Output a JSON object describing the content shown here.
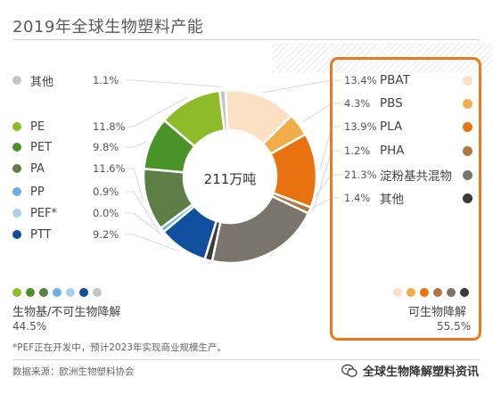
{
  "title": "2019年全球生物塑料产能",
  "chart_data": {
    "type": "pie",
    "title": "2019年全球生物塑料产能",
    "center_label": "211万吨",
    "slices": [
      {
        "name": "PBAT",
        "value": 13.4,
        "color": "#fbe0c3",
        "group": "bio"
      },
      {
        "name": "PBS",
        "value": 4.3,
        "color": "#f0ad49",
        "group": "bio"
      },
      {
        "name": "PLA",
        "value": 13.9,
        "color": "#e8720f",
        "group": "bio"
      },
      {
        "name": "PHA",
        "value": 1.2,
        "color": "#b07745",
        "group": "bio"
      },
      {
        "name": "淀粉基共混物",
        "value": 21.3,
        "color": "#7a746d",
        "group": "bio"
      },
      {
        "name": "其他",
        "value": 1.4,
        "color": "#3a3a3a",
        "group": "bio"
      },
      {
        "name": "PTT",
        "value": 9.2,
        "color": "#104e9e",
        "group": "bio-based"
      },
      {
        "name": "PEF*",
        "value": 0.0,
        "color": "#a6d0ee",
        "group": "bio-based"
      },
      {
        "name": "PP",
        "value": 0.9,
        "color": "#6fb0e2",
        "group": "bio-based"
      },
      {
        "name": "PA",
        "value": 11.6,
        "color": "#5d7f46",
        "group": "bio-based"
      },
      {
        "name": "PET",
        "value": 9.8,
        "color": "#4a9329",
        "group": "bio-based"
      },
      {
        "name": "PE",
        "value": 11.8,
        "color": "#8dbb2a",
        "group": "bio-based"
      },
      {
        "name": "其他",
        "value": 1.1,
        "color": "#c4c4c4",
        "group": "bio-based"
      }
    ]
  },
  "left_legend": [
    {
      "name": "其他",
      "pct": "1.1%",
      "color": "#c4c4c4"
    },
    {
      "name": "PE",
      "pct": "11.8%",
      "color": "#8dbb2a"
    },
    {
      "name": "PET",
      "pct": "9.8%",
      "color": "#4a9329"
    },
    {
      "name": "PA",
      "pct": "11.6%",
      "color": "#5d7f46"
    },
    {
      "name": "PP",
      "pct": "0.9%",
      "color": "#6fb0e2"
    },
    {
      "name": "PEF*",
      "pct": "0.0%",
      "color": "#a6d0ee"
    },
    {
      "name": "PTT",
      "pct": "9.2%",
      "color": "#104e9e"
    }
  ],
  "right_legend": [
    {
      "name": "PBAT",
      "pct": "13.4%",
      "color": "#fbe0c3"
    },
    {
      "name": "PBS",
      "pct": "4.3%",
      "color": "#f0ad49"
    },
    {
      "name": "PLA",
      "pct": "13.9%",
      "color": "#e8720f"
    },
    {
      "name": "PHA",
      "pct": "1.2%",
      "color": "#b07745"
    },
    {
      "name": "淀粉基共混物",
      "pct": "21.3%",
      "color": "#7a746d"
    },
    {
      "name": "其他",
      "pct": "1.4%",
      "color": "#3a3a3a"
    }
  ],
  "groups": {
    "left_label": "生物基/不可生物降解",
    "left_pct": "44.5%",
    "left_dots": [
      "#8dbb2a",
      "#4a9329",
      "#5d7f46",
      "#6fb0e2",
      "#a6d0ee",
      "#104e9e",
      "#c4c4c4"
    ],
    "right_label": "可生物降解",
    "right_pct": "55.5%",
    "right_dots": [
      "#fbe0c3",
      "#f0ad49",
      "#e8720f",
      "#b07745",
      "#7a746d",
      "#3a3a3a"
    ]
  },
  "footnote": "*PEF正在开发中，预计2023年实现商业规模生产。",
  "source": "数据来源：欧洲生物塑料协会",
  "watermark": "全球生物降解塑料资讯",
  "colors": {
    "accent": "#ea7a1d"
  }
}
